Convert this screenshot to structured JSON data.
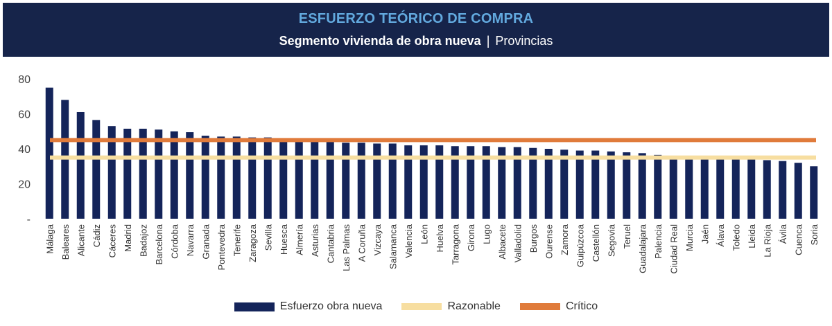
{
  "header": {
    "title": "ESFUERZO TEÓRICO DE COMPRA",
    "subtitle_main": "Segmento vivienda de obra nueva",
    "subtitle_sep": "|",
    "subtitle_secondary": "Provincias"
  },
  "colors": {
    "header_bg": "#16244a",
    "title": "#62a9de",
    "bar": "#14245a",
    "razonable": "#f7dea0",
    "critico": "#e07b3b"
  },
  "legend": {
    "bar_label": "Esfuerzo obra nueva",
    "razonable_label": "Razonable",
    "critico_label": "Crítico"
  },
  "chart_data": {
    "type": "bar",
    "title": "ESFUERZO TEÓRICO DE COMPRA",
    "subtitle": "Segmento vivienda de obra nueva | Provincias",
    "xlabel": "",
    "ylabel": "",
    "ylim": [
      0,
      80
    ],
    "yticks": [
      "-",
      "20",
      "40",
      "60",
      "80"
    ],
    "categories": [
      "Málaga",
      "Baleares",
      "Alicante",
      "Cádiz",
      "Cáceres",
      "Madrid",
      "Badajoz",
      "Barcelona",
      "Córdoba",
      "Navarra",
      "Granada",
      "Pontevedra",
      "Tenerife",
      "Zaragoza",
      "Sevilla",
      "Huesca",
      "Almería",
      "Asturias",
      "Cantabria",
      "Las Palmas",
      "A Coruña",
      "Vizcaya",
      "Salamanca",
      "Valencia",
      "León",
      "Huelva",
      "Tarragona",
      "Girona",
      "Lugo",
      "Albacete",
      "Valladolid",
      "Burgos",
      "Ourense",
      "Zamora",
      "Guipúzcoa",
      "Castellón",
      "Segovia",
      "Teruel",
      "Guadalajara",
      "Palencia",
      "Ciudad Real",
      "Murcia",
      "Jaén",
      "Álava",
      "Toledo",
      "Lleida",
      "La Rioja",
      "Ávila",
      "Cuenca",
      "Soria"
    ],
    "series": [
      {
        "name": "Esfuerzo obra nueva",
        "values": [
          75,
          68,
          61,
          56.5,
          53,
          51.5,
          51.5,
          51,
          50,
          49.5,
          47.5,
          47,
          47,
          46.5,
          46.5,
          45,
          44.5,
          44,
          44,
          43.5,
          43.5,
          43,
          43,
          42,
          42,
          42,
          41.5,
          41.5,
          41.5,
          41,
          41,
          40.5,
          40,
          39.5,
          39,
          39,
          38.5,
          38,
          37.5,
          36.5,
          35,
          34.5,
          34,
          34,
          34,
          34,
          33.5,
          33,
          32,
          30
        ]
      }
    ],
    "reference_lines": [
      {
        "name": "Razonable",
        "value": 35
      },
      {
        "name": "Crítico",
        "value": 45
      }
    ],
    "legend_position": "bottom"
  }
}
